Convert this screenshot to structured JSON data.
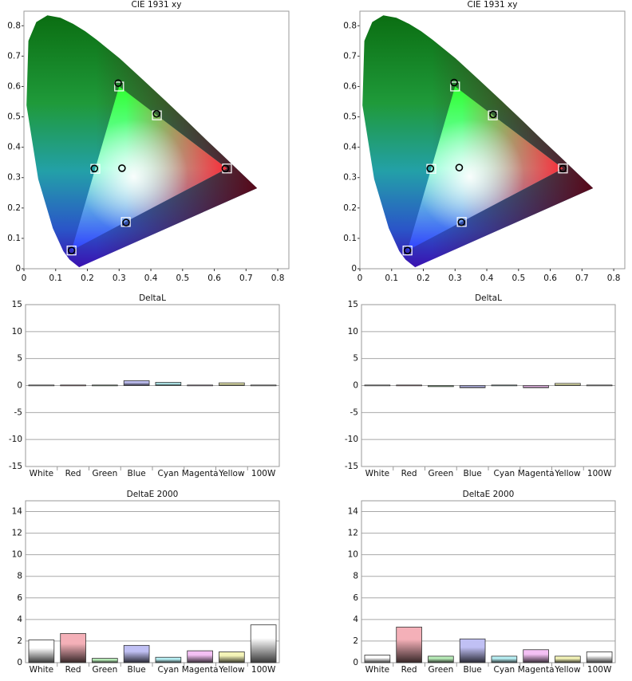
{
  "chart_data": [
    {
      "type": "scatter",
      "title": "CIE 1931 xy",
      "xlim": [
        0,
        0.835
      ],
      "ylim": [
        0,
        0.848
      ],
      "xticks": [
        0,
        0.1,
        0.2,
        0.3,
        0.4,
        0.5,
        0.6,
        0.7,
        0.8
      ],
      "yticks": [
        0,
        0.1,
        0.2,
        0.3,
        0.4,
        0.5,
        0.6,
        0.7,
        0.8
      ],
      "grid": false,
      "series": [
        {
          "marker": "square",
          "color": "#ffffff",
          "x": [
            0.64,
            0.3,
            0.15,
            0.225,
            0.321,
            0.419
          ],
          "values": [
            0.33,
            0.6,
            0.06,
            0.329,
            0.154,
            0.505
          ]
        },
        {
          "marker": "circle",
          "color": "#000000",
          "x": [
            0.635,
            0.297,
            0.15,
            0.222,
            0.322,
            0.418,
            0.309
          ],
          "values": [
            0.33,
            0.611,
            0.06,
            0.33,
            0.152,
            0.51,
            0.331
          ]
        }
      ]
    },
    {
      "type": "scatter",
      "title": "CIE 1931 xy",
      "xlim": [
        0,
        0.835
      ],
      "ylim": [
        0,
        0.848
      ],
      "xticks": [
        0,
        0.1,
        0.2,
        0.3,
        0.4,
        0.5,
        0.6,
        0.7,
        0.8
      ],
      "yticks": [
        0,
        0.1,
        0.2,
        0.3,
        0.4,
        0.5,
        0.6,
        0.7,
        0.8
      ],
      "grid": false,
      "series": [
        {
          "marker": "square",
          "color": "#ffffff",
          "x": [
            0.64,
            0.3,
            0.15,
            0.225,
            0.321,
            0.419
          ],
          "values": [
            0.33,
            0.6,
            0.06,
            0.329,
            0.154,
            0.505
          ]
        },
        {
          "marker": "circle",
          "color": "#000000",
          "x": [
            0.64,
            0.297,
            0.15,
            0.222,
            0.32,
            0.42,
            0.313
          ],
          "values": [
            0.33,
            0.613,
            0.06,
            0.33,
            0.153,
            0.508,
            0.333
          ]
        }
      ]
    },
    {
      "type": "bar",
      "title": "DeltaL",
      "categories": [
        "White",
        "Red",
        "Green",
        "Blue",
        "Cyan",
        "Magenta",
        "Yellow",
        "100W"
      ],
      "values": [
        0.1,
        0.1,
        0.1,
        0.9,
        0.6,
        0.1,
        0.5,
        0.1
      ],
      "colors": [
        "#ffffff",
        "#f4b0b8",
        "#b8ecb8",
        "#c0c0f4",
        "#b8f0f4",
        "#f4c0f4",
        "#f4f4b8",
        "#ffffff"
      ],
      "ylim": [
        -15,
        15
      ],
      "yticks": [
        -15,
        -10,
        -5,
        0,
        5,
        10,
        15
      ],
      "grid": true
    },
    {
      "type": "bar",
      "title": "DeltaL",
      "categories": [
        "White",
        "Red",
        "Green",
        "Blue",
        "Cyan",
        "Magenta",
        "Yellow",
        "100W"
      ],
      "values": [
        0.1,
        0.1,
        -0.2,
        -0.4,
        0.1,
        -0.4,
        0.4,
        0.1
      ],
      "colors": [
        "#ffffff",
        "#f4b0b8",
        "#b8ecb8",
        "#c0c0f4",
        "#b8f0f4",
        "#f4c0f4",
        "#f4f4b8",
        "#ffffff"
      ],
      "ylim": [
        -15,
        15
      ],
      "yticks": [
        -15,
        -10,
        -5,
        0,
        5,
        10,
        15
      ],
      "grid": true
    },
    {
      "type": "bar",
      "title": "DeltaE 2000",
      "categories": [
        "White",
        "Red",
        "Green",
        "Blue",
        "Cyan",
        "Magenta",
        "Yellow",
        "100W"
      ],
      "values": [
        2.1,
        2.7,
        0.4,
        1.6,
        0.5,
        1.1,
        1.0,
        3.5
      ],
      "colors": [
        "#ffffff",
        "#f4b0b8",
        "#b8ecb8",
        "#c0c0f4",
        "#b8f0f4",
        "#f4c0f4",
        "#f4f4b8",
        "#ffffff"
      ],
      "ylim": [
        0,
        15
      ],
      "yticks": [
        0,
        2,
        4,
        6,
        8,
        10,
        12,
        14
      ],
      "grid": true
    },
    {
      "type": "bar",
      "title": "DeltaE 2000",
      "categories": [
        "White",
        "Red",
        "Green",
        "Blue",
        "Cyan",
        "Magenta",
        "Yellow",
        "100W"
      ],
      "values": [
        0.7,
        3.3,
        0.6,
        2.2,
        0.6,
        1.2,
        0.6,
        1.0
      ],
      "colors": [
        "#ffffff",
        "#f4b0b8",
        "#b8ecb8",
        "#c0c0f4",
        "#b8f0f4",
        "#f4c0f4",
        "#f4f4b8",
        "#ffffff"
      ],
      "ylim": [
        0,
        15
      ],
      "yticks": [
        0,
        2,
        4,
        6,
        8,
        10,
        12,
        14
      ],
      "grid": true
    }
  ]
}
